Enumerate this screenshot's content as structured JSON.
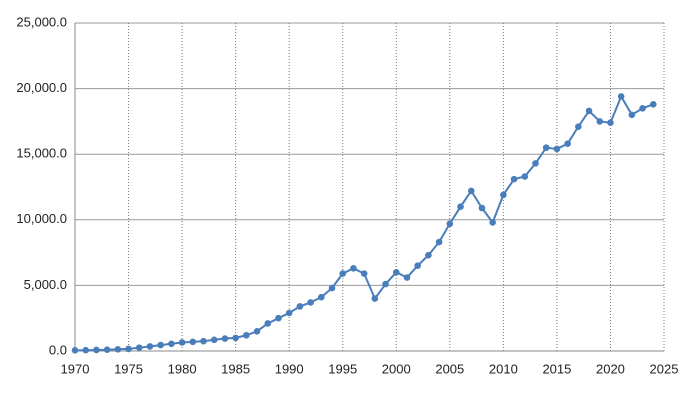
{
  "chart_data": {
    "type": "line",
    "x": [
      1970,
      1971,
      1972,
      1973,
      1974,
      1975,
      1976,
      1977,
      1978,
      1979,
      1980,
      1981,
      1982,
      1983,
      1984,
      1985,
      1986,
      1987,
      1988,
      1989,
      1990,
      1991,
      1992,
      1993,
      1994,
      1995,
      1996,
      1997,
      1998,
      1999,
      2000,
      2001,
      2002,
      2003,
      2004,
      2005,
      2006,
      2007,
      2008,
      2009,
      2010,
      2011,
      2012,
      2013,
      2014,
      2015,
      2016,
      2017,
      2018,
      2019,
      2020,
      2021,
      2022,
      2023,
      2024
    ],
    "series": [
      {
        "color": "#4a7ebb",
        "values": [
          50,
          60,
          80,
          100,
          130,
          160,
          250,
          350,
          450,
          550,
          650,
          700,
          750,
          850,
          950,
          1000,
          1200,
          1500,
          2100,
          2500,
          2900,
          3400,
          3700,
          4100,
          4800,
          5900,
          6300,
          5900,
          4000,
          5100,
          6000,
          5600,
          6500,
          7300,
          8300,
          9700,
          11000,
          12200,
          10900,
          9800,
          11900,
          13100,
          13300,
          14300,
          15500,
          15400,
          15800,
          17100,
          18300,
          17500,
          17400,
          19400,
          18000,
          18500,
          18800
        ]
      }
    ],
    "xlim": [
      1970,
      2025
    ],
    "xticks": [
      1970,
      1975,
      1980,
      1985,
      1990,
      1995,
      2000,
      2005,
      2010,
      2015,
      2020,
      2025
    ],
    "ylim": [
      0,
      25000
    ],
    "yticks": [
      {
        "value": 0,
        "label": "0.0"
      },
      {
        "value": 5000,
        "label": "5,000.0"
      },
      {
        "value": 10000,
        "label": "10,000.0"
      },
      {
        "value": 15000,
        "label": "15,000.0"
      },
      {
        "value": 20000,
        "label": "20,000.0"
      },
      {
        "value": 25000,
        "label": "25,000.0"
      }
    ],
    "grid": true
  }
}
